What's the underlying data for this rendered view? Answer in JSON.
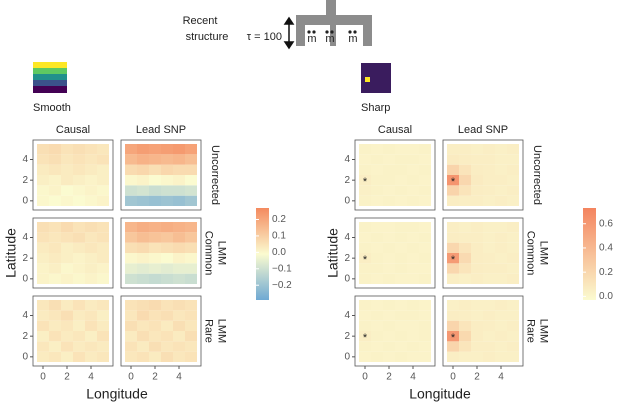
{
  "header": {
    "title_lines": [
      "Recent",
      "structure"
    ],
    "tau": "τ = 100",
    "deme_labels": [
      "m",
      "m",
      "m"
    ]
  },
  "chart_data": [
    {
      "type": "heatmap",
      "legend_label": "Smooth",
      "columns": [
        "Causal",
        "Lead SNP"
      ],
      "rows": [
        [
          "Uncorrected"
        ],
        [
          "Common",
          "LMM"
        ],
        [
          "Rare",
          "LMM"
        ]
      ],
      "xlabel": "Longitude",
      "ylabel": "Latitude",
      "xlim": [
        -0.5,
        5.5
      ],
      "ylim": [
        -0.5,
        5.5
      ],
      "xticks": [
        0,
        2,
        4
      ],
      "yticks": [
        0,
        2,
        4
      ],
      "clim": [
        -0.29,
        0.27
      ],
      "colors": [
        "#6fa9d3",
        "#fbfbd0",
        "#f48a5f"
      ],
      "cticks": [
        {
          "value": -0.2,
          "label": "−0.2"
        },
        {
          "value": -0.1,
          "label": "−0.1"
        },
        {
          "value": 0,
          "label": "0.0"
        },
        0.1,
        0.2
      ],
      "facets": [
        [
          {
            "z": [
              [
                0.0,
                -0.01,
                0.0,
                -0.01,
                0.0,
                0.01
              ],
              [
                0.0,
                0.01,
                -0.01,
                0.0,
                0.01,
                0.0
              ],
              [
                0.02,
                0.01,
                0.03,
                0.02,
                0.01,
                0.02
              ],
              [
                0.03,
                0.04,
                0.03,
                0.04,
                0.03,
                0.02
              ],
              [
                0.05,
                0.06,
                0.04,
                0.05,
                0.04,
                0.05
              ],
              [
                0.06,
                0.07,
                0.05,
                0.06,
                0.05,
                0.04
              ]
            ]
          },
          {
            "z": [
              [
                -0.19,
                -0.2,
                -0.21,
                -0.2,
                -0.21,
                -0.19
              ],
              [
                -0.1,
                -0.09,
                -0.11,
                -0.1,
                -0.1,
                -0.09
              ],
              [
                0.0,
                0.01,
                -0.01,
                0.0,
                0.01,
                -0.01
              ],
              [
                0.07,
                0.08,
                0.06,
                0.08,
                0.07,
                0.07
              ],
              [
                0.15,
                0.17,
                0.16,
                0.15,
                0.16,
                0.14
              ],
              [
                0.2,
                0.22,
                0.21,
                0.22,
                0.23,
                0.21
              ]
            ]
          }
        ],
        [
          {
            "z": [
              [
                0.01,
                0.0,
                0.01,
                0.0,
                0.01,
                0.0
              ],
              [
                0.01,
                0.02,
                0.0,
                0.01,
                0.02,
                0.01
              ],
              [
                0.02,
                0.03,
                0.02,
                0.01,
                0.02,
                0.03
              ],
              [
                0.03,
                0.04,
                0.02,
                0.03,
                0.04,
                0.03
              ],
              [
                0.05,
                0.04,
                0.05,
                0.06,
                0.04,
                0.05
              ],
              [
                0.06,
                0.05,
                0.07,
                0.05,
                0.06,
                0.05
              ]
            ]
          },
          {
            "z": [
              [
                -0.1,
                -0.11,
                -0.12,
                -0.11,
                -0.1,
                -0.11
              ],
              [
                -0.05,
                -0.06,
                -0.05,
                -0.06,
                -0.05,
                -0.05
              ],
              [
                0.0,
                0.01,
                0.0,
                -0.01,
                0.01,
                0.0
              ],
              [
                0.06,
                0.07,
                0.05,
                0.06,
                0.07,
                0.06
              ],
              [
                0.12,
                0.14,
                0.13,
                0.12,
                0.14,
                0.12
              ],
              [
                0.16,
                0.18,
                0.17,
                0.18,
                0.17,
                0.16
              ]
            ]
          }
        ],
        [
          {
            "z": [
              [
                0.03,
                0.04,
                0.02,
                0.05,
                0.03,
                0.04
              ],
              [
                0.04,
                0.02,
                0.05,
                0.03,
                0.04,
                0.03
              ],
              [
                0.02,
                0.05,
                0.03,
                0.04,
                0.02,
                0.05
              ],
              [
                0.05,
                0.03,
                0.04,
                0.02,
                0.05,
                0.03
              ],
              [
                0.03,
                0.04,
                0.06,
                0.03,
                0.04,
                0.02
              ],
              [
                0.04,
                0.06,
                0.03,
                0.05,
                0.03,
                0.04
              ]
            ]
          },
          {
            "z": [
              [
                0.04,
                0.05,
                0.03,
                0.06,
                0.04,
                0.05
              ],
              [
                0.05,
                0.03,
                0.06,
                0.04,
                0.05,
                0.04
              ],
              [
                0.03,
                0.06,
                0.04,
                0.05,
                0.03,
                0.06
              ],
              [
                0.06,
                0.04,
                0.05,
                0.03,
                0.06,
                0.04
              ],
              [
                0.04,
                0.07,
                0.05,
                0.06,
                0.04,
                0.05
              ],
              [
                0.05,
                0.06,
                0.07,
                0.05,
                0.06,
                0.05
              ]
            ]
          }
        ]
      ]
    },
    {
      "type": "heatmap",
      "legend_label": "Sharp",
      "columns": [
        "Causal",
        "Lead SNP"
      ],
      "rows": [
        [
          "Uncorrected"
        ],
        [
          "Common",
          "LMM"
        ],
        [
          "Rare",
          "LMM"
        ]
      ],
      "xlabel": "Longitude",
      "ylabel": "Latitude",
      "xlim": [
        -0.5,
        5.5
      ],
      "ylim": [
        -0.5,
        5.5
      ],
      "xticks": [
        0,
        2,
        4
      ],
      "yticks": [
        0,
        2,
        4
      ],
      "clim": [
        -0.03,
        0.73
      ],
      "colors": [
        "#fbfbd0",
        "#f4845f"
      ],
      "cticks": [
        {
          "value": 0,
          "label": "0.0"
        },
        0.2,
        0.4,
        0.6
      ],
      "marker": {
        "x": 0,
        "y": 2,
        "label": "*"
      },
      "facets": [
        [
          {
            "z": [
              [
                0.03,
                0.02,
                0.03,
                0.02,
                0.03,
                0.02
              ],
              [
                0.04,
                0.03,
                0.02,
                0.03,
                0.02,
                0.03
              ],
              [
                0.05,
                0.03,
                0.03,
                0.02,
                0.03,
                0.02
              ],
              [
                0.03,
                0.02,
                0.03,
                0.03,
                0.02,
                0.03
              ],
              [
                0.02,
                0.03,
                0.02,
                0.03,
                0.03,
                0.02
              ],
              [
                0.03,
                0.02,
                0.03,
                0.02,
                0.02,
                0.03
              ]
            ]
          },
          {
            "z": [
              [
                0.06,
                0.05,
                0.05,
                0.04,
                0.05,
                0.04
              ],
              [
                0.22,
                0.12,
                0.06,
                0.05,
                0.04,
                0.05
              ],
              [
                0.62,
                0.2,
                0.07,
                0.05,
                0.05,
                0.04
              ],
              [
                0.22,
                0.12,
                0.06,
                0.05,
                0.04,
                0.05
              ],
              [
                0.07,
                0.06,
                0.05,
                0.05,
                0.04,
                0.04
              ],
              [
                0.05,
                0.05,
                0.04,
                0.05,
                0.04,
                0.05
              ]
            ]
          }
        ],
        [
          {
            "z": [
              [
                0.03,
                0.02,
                0.03,
                0.02,
                0.02,
                0.03
              ],
              [
                0.03,
                0.03,
                0.02,
                0.03,
                0.02,
                0.02
              ],
              [
                0.05,
                0.03,
                0.02,
                0.03,
                0.02,
                0.03
              ],
              [
                0.03,
                0.02,
                0.03,
                0.02,
                0.03,
                0.02
              ],
              [
                0.02,
                0.03,
                0.02,
                0.03,
                0.02,
                0.03
              ],
              [
                0.03,
                0.02,
                0.02,
                0.03,
                0.03,
                0.02
              ]
            ]
          },
          {
            "z": [
              [
                0.05,
                0.04,
                0.05,
                0.04,
                0.04,
                0.05
              ],
              [
                0.2,
                0.11,
                0.06,
                0.05,
                0.05,
                0.04
              ],
              [
                0.58,
                0.18,
                0.06,
                0.05,
                0.04,
                0.05
              ],
              [
                0.2,
                0.11,
                0.06,
                0.04,
                0.05,
                0.04
              ],
              [
                0.06,
                0.05,
                0.05,
                0.04,
                0.05,
                0.04
              ],
              [
                0.05,
                0.04,
                0.05,
                0.04,
                0.04,
                0.05
              ]
            ]
          }
        ],
        [
          {
            "z": [
              [
                0.02,
                0.03,
                0.02,
                0.03,
                0.02,
                0.02
              ],
              [
                0.03,
                0.02,
                0.03,
                0.02,
                0.03,
                0.02
              ],
              [
                0.05,
                0.03,
                0.02,
                0.03,
                0.02,
                0.03
              ],
              [
                0.03,
                0.02,
                0.03,
                0.02,
                0.02,
                0.03
              ],
              [
                0.02,
                0.03,
                0.02,
                0.03,
                0.03,
                0.02
              ],
              [
                0.03,
                0.02,
                0.03,
                0.02,
                0.03,
                0.02
              ]
            ]
          },
          {
            "z": [
              [
                0.05,
                0.04,
                0.04,
                0.05,
                0.04,
                0.04
              ],
              [
                0.21,
                0.11,
                0.05,
                0.05,
                0.04,
                0.05
              ],
              [
                0.6,
                0.19,
                0.06,
                0.04,
                0.05,
                0.04
              ],
              [
                0.21,
                0.11,
                0.06,
                0.05,
                0.04,
                0.05
              ],
              [
                0.06,
                0.05,
                0.04,
                0.05,
                0.04,
                0.04
              ],
              [
                0.04,
                0.05,
                0.04,
                0.04,
                0.05,
                0.04
              ]
            ]
          }
        ]
      ]
    }
  ]
}
